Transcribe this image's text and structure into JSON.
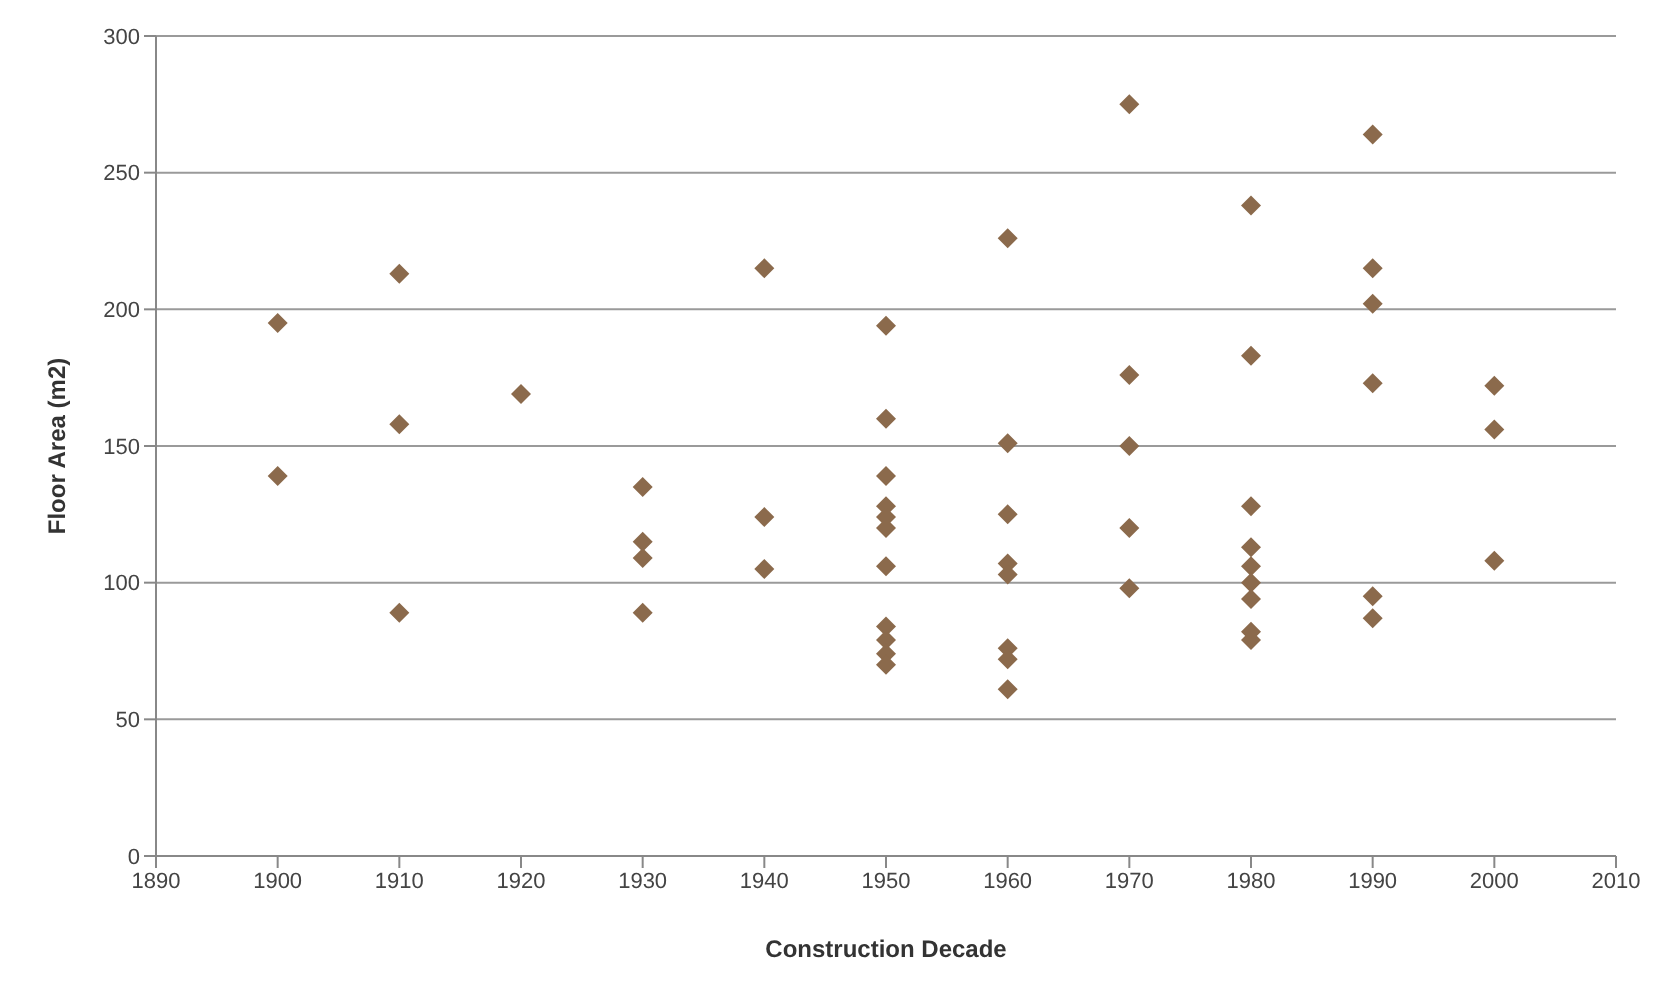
{
  "chart_data": {
    "type": "scatter",
    "xlabel": "Construction Decade",
    "ylabel": "Floor Area (m2)",
    "x": [
      1900,
      1900,
      1910,
      1910,
      1910,
      1920,
      1930,
      1930,
      1930,
      1930,
      1940,
      1940,
      1940,
      1950,
      1950,
      1950,
      1950,
      1950,
      1950,
      1950,
      1950,
      1950,
      1950,
      1950,
      1960,
      1960,
      1960,
      1960,
      1960,
      1960,
      1960,
      1960,
      1970,
      1970,
      1970,
      1970,
      1970,
      1980,
      1980,
      1980,
      1980,
      1980,
      1980,
      1980,
      1980,
      1980,
      1990,
      1990,
      1990,
      1990,
      1990,
      1990,
      2000,
      2000,
      2000
    ],
    "series": [
      {
        "color": "#8b6a4c",
        "values": [
          195,
          139,
          213,
          158,
          89,
          169,
          135,
          115,
          109,
          89,
          215,
          124,
          105,
          194,
          160,
          139,
          128,
          124,
          120,
          106,
          84,
          79,
          74,
          70,
          226,
          151,
          125,
          107,
          103,
          76,
          72,
          61,
          275,
          176,
          150,
          120,
          98,
          238,
          183,
          128,
          113,
          106,
          100,
          94,
          82,
          79,
          264,
          215,
          202,
          173,
          95,
          87,
          172,
          156,
          108
        ]
      }
    ],
    "xlim": [
      1890,
      2010
    ],
    "xticks": [
      1890,
      1900,
      1910,
      1920,
      1930,
      1940,
      1950,
      1960,
      1970,
      1980,
      1990,
      2000,
      2010
    ],
    "ylim": [
      0,
      300
    ],
    "yticks": [
      0,
      50,
      100,
      150,
      200,
      250,
      300
    ],
    "grid": "y",
    "marker": "diamond",
    "legend": false
  }
}
